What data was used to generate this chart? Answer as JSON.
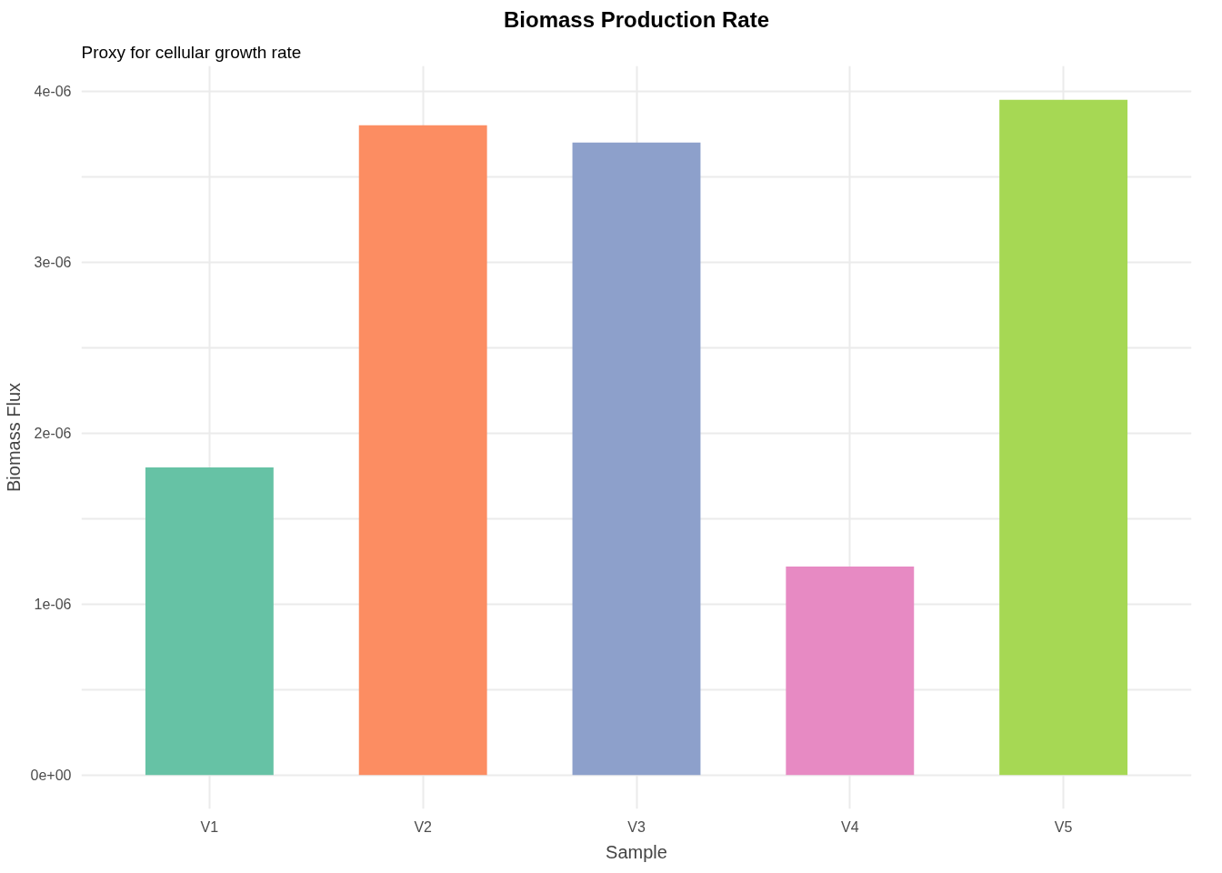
{
  "chart_data": {
    "type": "bar",
    "title": "Biomass Production Rate",
    "subtitle": "Proxy for cellular growth rate",
    "xlabel": "Sample",
    "ylabel": "Biomass Flux",
    "categories": [
      "V1",
      "V2",
      "V3",
      "V4",
      "V5"
    ],
    "values": [
      1.8e-06,
      3.8e-06,
      3.7e-06,
      1.22e-06,
      3.95e-06
    ],
    "colors": [
      "#66c2a5",
      "#fc8d62",
      "#8da0cb",
      "#e78ac3",
      "#a6d854"
    ],
    "ylim": [
      -1.975e-07,
      4.1475e-06
    ],
    "yticks": [
      {
        "value": 0,
        "label": "0e+00"
      },
      {
        "value": 5e-07,
        "label": null
      },
      {
        "value": 1e-06,
        "label": "1e-06"
      },
      {
        "value": 1.5e-06,
        "label": null
      },
      {
        "value": 2e-06,
        "label": "2e-06"
      },
      {
        "value": 2.5e-06,
        "label": null
      },
      {
        "value": 3e-06,
        "label": "3e-06"
      },
      {
        "value": 3.5e-06,
        "label": null
      },
      {
        "value": 4e-06,
        "label": "4e-06"
      }
    ],
    "grid": true
  }
}
